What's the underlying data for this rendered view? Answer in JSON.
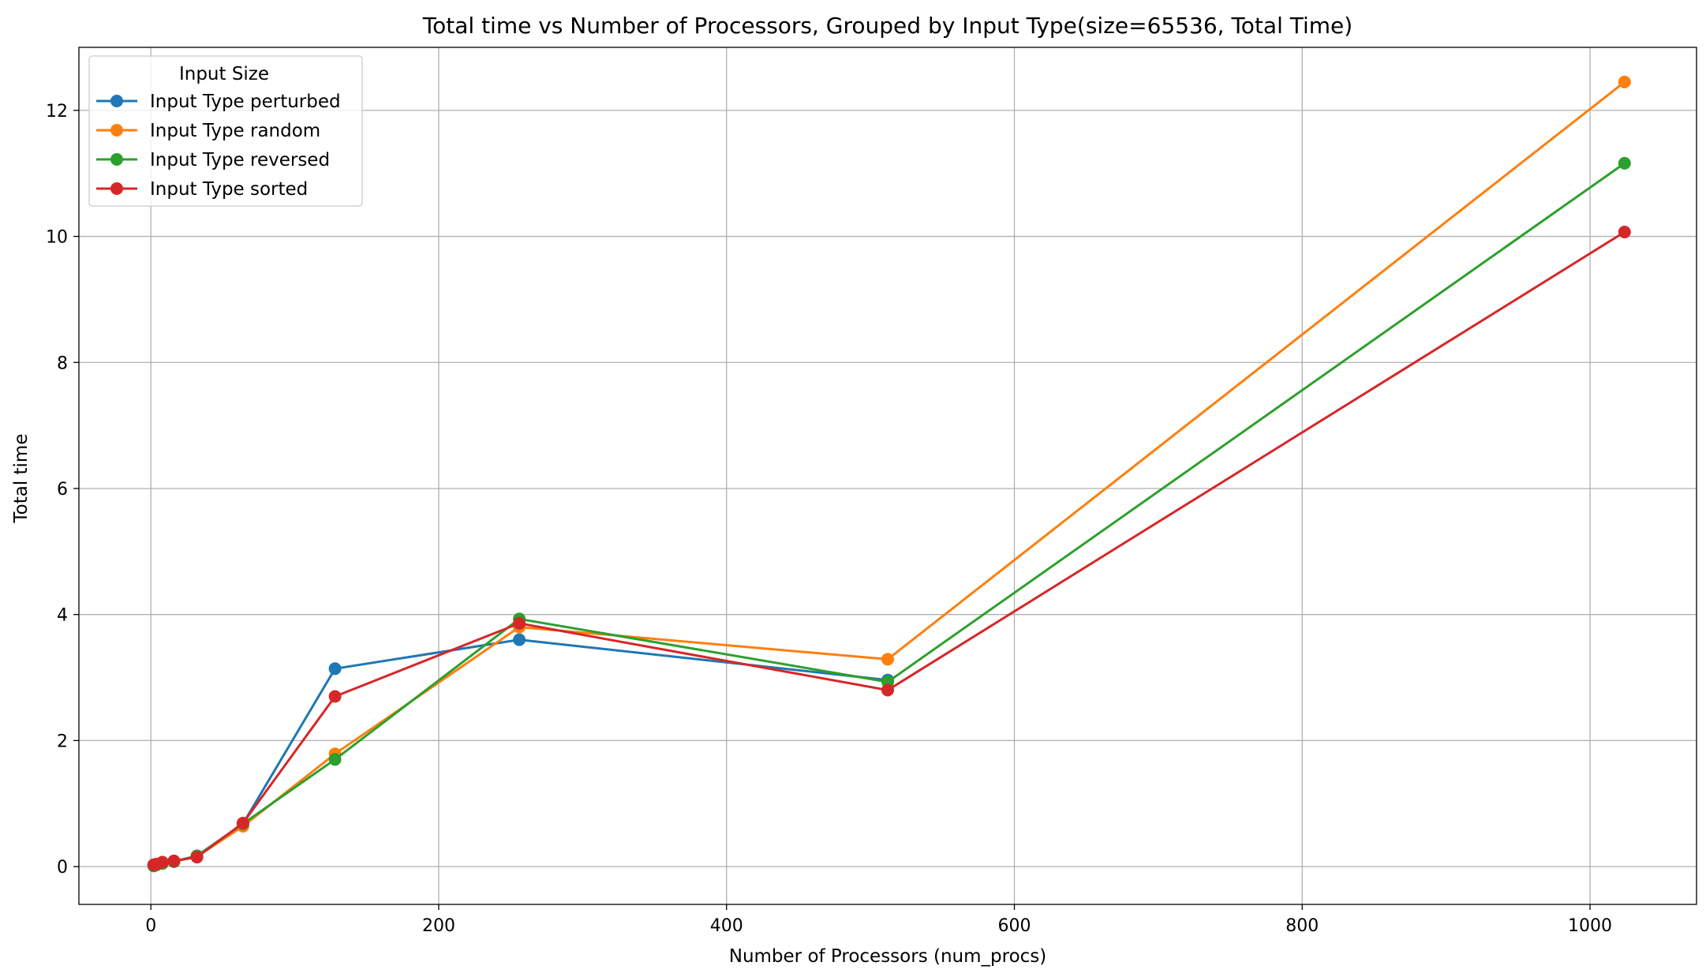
{
  "chart_data": {
    "type": "line",
    "title": "Total time vs Number of Processors, Grouped by Input Type(size=65536, Total Time)",
    "xlabel": "Number of Processors (num_procs)",
    "ylabel": "Total time",
    "xlim": [
      -50,
      1074
    ],
    "ylim": [
      -0.6,
      13.0
    ],
    "xticks": [
      0,
      200,
      400,
      600,
      800,
      1000
    ],
    "yticks": [
      0,
      2,
      4,
      6,
      8,
      10,
      12
    ],
    "grid": true,
    "legend": {
      "title": "Input Size",
      "placement": "top-left"
    },
    "x": [
      2,
      4,
      8,
      16,
      32,
      64,
      128,
      256,
      512,
      1024
    ],
    "series": [
      {
        "name": "Input Type perturbed",
        "color": "#1f77b4",
        "values": [
          0.02,
          0.03,
          0.06,
          0.08,
          0.17,
          0.68,
          3.14,
          3.6,
          2.96,
          null
        ]
      },
      {
        "name": "Input Type random",
        "color": "#ff7f0e",
        "values": [
          0.02,
          0.03,
          0.05,
          0.08,
          0.16,
          0.64,
          1.79,
          3.8,
          3.29,
          12.45
        ]
      },
      {
        "name": "Input Type reversed",
        "color": "#2ca02c",
        "values": [
          0.01,
          0.03,
          0.05,
          0.08,
          0.17,
          0.68,
          1.7,
          3.93,
          2.93,
          11.16
        ]
      },
      {
        "name": "Input Type sorted",
        "color": "#d62728",
        "values": [
          0.03,
          0.04,
          0.07,
          0.09,
          0.15,
          0.69,
          2.7,
          3.86,
          2.8,
          10.07
        ]
      }
    ]
  }
}
